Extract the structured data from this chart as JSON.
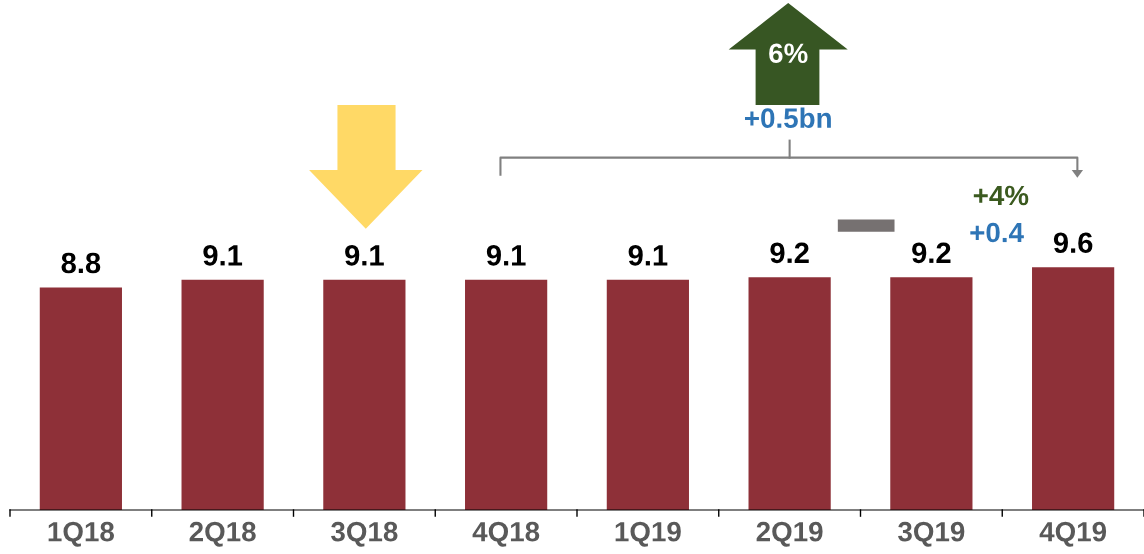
{
  "chart_data": {
    "type": "bar",
    "categories": [
      "1Q18",
      "2Q18",
      "3Q18",
      "4Q18",
      "1Q19",
      "2Q19",
      "3Q19",
      "4Q19"
    ],
    "values": [
      8.8,
      9.1,
      9.1,
      9.1,
      9.1,
      9.2,
      9.2,
      9.6
    ],
    "color": "#8e3038",
    "tick_labels": "x",
    "data_labels": true,
    "grid": false,
    "legend": false,
    "annotations": [
      "6%",
      "+0.5bn",
      "+4%",
      "+0.4"
    ]
  }
}
